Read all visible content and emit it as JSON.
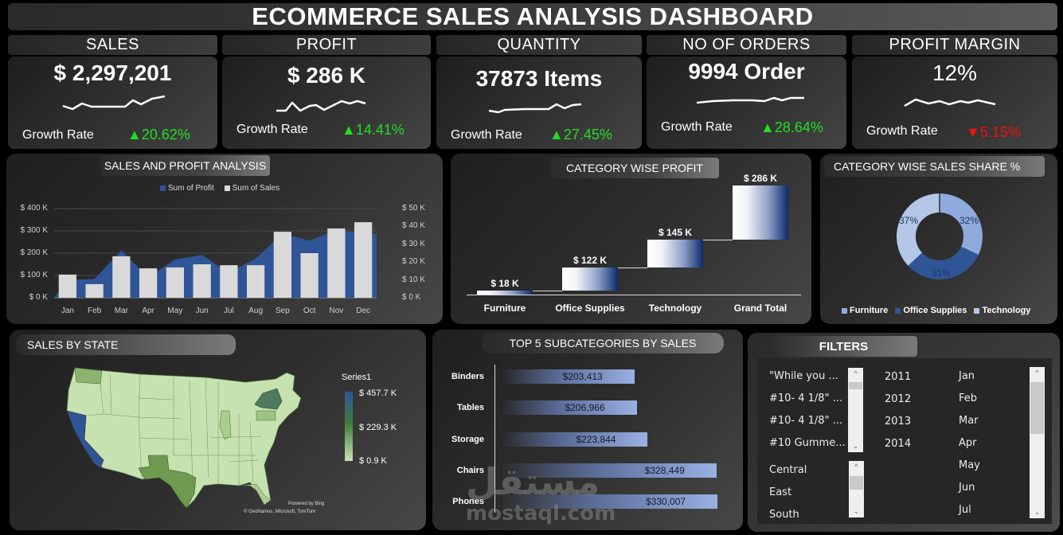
{
  "title": "ECOMMERCE SALES ANALYSIS DASHBOARD",
  "kpis": [
    {
      "header": "SALES",
      "value": "$  2,297,201",
      "growth_label": "Growth Rate",
      "growth_dir": "up",
      "growth_arrow": "▲",
      "growth_value": "20.62%"
    },
    {
      "header": "PROFIT",
      "value": "$ 286 K",
      "growth_label": "Growth Rate",
      "growth_dir": "up",
      "growth_arrow": "▲",
      "growth_value": "14.41%"
    },
    {
      "header": "QUANTITY",
      "value": "37873  Items",
      "growth_label": "Growth Rate",
      "growth_dir": "up",
      "growth_arrow": "▲",
      "growth_value": "27.45%"
    },
    {
      "header": "NO OF ORDERS",
      "value": "9994  Order",
      "growth_label": "Growth Rate",
      "growth_dir": "up",
      "growth_arrow": "▲",
      "growth_value": "28.64%"
    },
    {
      "header": "PROFIT MARGIN",
      "value": "12%",
      "growth_label": "Growth Rate",
      "growth_dir": "down",
      "growth_arrow": "▼",
      "growth_value": "5.15%"
    }
  ],
  "sales_profit": {
    "title": "SALES AND PROFIT ANALYSIS",
    "legend": {
      "profit": "Sum of Profit",
      "sales": "Sum of Sales"
    },
    "left_ticks": [
      "$ 400 K",
      "$ 300 K",
      "$ 200 K",
      "$ 100 K",
      "$ 0 K"
    ],
    "right_ticks": [
      "$ 50 K",
      "$ 40 K",
      "$ 30 K",
      "$ 20 K",
      "$ 10 K",
      "$ 0 K"
    ],
    "months": [
      "Jan",
      "Feb",
      "Mar",
      "Apr",
      "May",
      "Jun",
      "Jul",
      "Aug",
      "Sep",
      "Oct",
      "Nov",
      "Dec"
    ]
  },
  "category_profit": {
    "title": "CATEGORY WISE PROFIT",
    "categories": [
      "Furniture",
      "Office Supplies",
      "Technology",
      "Grand Total"
    ],
    "labels": [
      "$ 18 K",
      "$ 122 K",
      "$ 145 K",
      "$ 286 K"
    ]
  },
  "category_share": {
    "title": "CATEGORY WISE SALES SHARE %",
    "slices": [
      {
        "name": "Furniture",
        "pct": "32%",
        "color": "#8faadc"
      },
      {
        "name": "Office Supplies",
        "pct": "31%",
        "color": "#2f5597"
      },
      {
        "name": "Technology",
        "pct": "37%",
        "color": "#b4c7e7"
      }
    ]
  },
  "map": {
    "title": "SALES BY STATE",
    "legend_title": "Series1",
    "legend_max": "$ 457.7 K",
    "legend_mid": "$ 229.3 K",
    "legend_min": "$ 0.9 K",
    "attribution_1": "Powered by Bing",
    "attribution_2": "© GeoNames, Microsoft, TomTom"
  },
  "top5": {
    "title": "TOP 5 SUBCATEGORIES BY SALES",
    "items": [
      {
        "name": "Binders",
        "value": "$203,413"
      },
      {
        "name": "Tables",
        "value": "$206,966"
      },
      {
        "name": "Storage",
        "value": "$223,844"
      },
      {
        "name": "Chairs",
        "value": "$328,449"
      },
      {
        "name": "Phones",
        "value": "$330,007"
      }
    ]
  },
  "filters": {
    "title": "FILTERS",
    "products": [
      "\"While you ...",
      "#10- 4 1/8\" ...",
      "#10- 4 1/8\" ...",
      "#10 Gumme..."
    ],
    "regions": [
      "Central",
      "East",
      "South"
    ],
    "years": [
      "2011",
      "2012",
      "2013",
      "2014"
    ],
    "months": [
      "Jan",
      "Feb",
      "Mar",
      "Apr",
      "May",
      "Jun",
      "Jul"
    ]
  },
  "watermark": {
    "arabic": "مستقل",
    "latin": "mostaql.com"
  },
  "chart_data": [
    {
      "type": "bar",
      "title": "SALES AND PROFIT ANALYSIS",
      "categories": [
        "Jan",
        "Feb",
        "Mar",
        "Apr",
        "May",
        "Jun",
        "Jul",
        "Aug",
        "Sep",
        "Oct",
        "Nov",
        "Dec"
      ],
      "series": [
        {
          "name": "Sum of Sales",
          "type": "bar",
          "axis": "left",
          "values": [
            104000,
            61000,
            186000,
            132000,
            136000,
            150000,
            146000,
            146000,
            296000,
            200000,
            311000,
            339000
          ]
        },
        {
          "name": "Sum of Profit",
          "type": "area",
          "axis": "right",
          "values": [
            10000,
            10500,
            26500,
            11500,
            21500,
            24000,
            14000,
            22000,
            36000,
            32000,
            38000,
            36000
          ]
        }
      ],
      "ylim_left": [
        0,
        400000
      ],
      "ylim_right": [
        0,
        50000
      ],
      "legend_position": "top",
      "grid": true
    },
    {
      "type": "bar",
      "subtype": "waterfall",
      "title": "CATEGORY WISE PROFIT",
      "categories": [
        "Furniture",
        "Office Supplies",
        "Technology",
        "Grand Total"
      ],
      "values": [
        18000,
        122000,
        145000,
        286000
      ]
    },
    {
      "type": "pie",
      "subtype": "donut",
      "title": "CATEGORY WISE SALES SHARE %",
      "categories": [
        "Furniture",
        "Office Supplies",
        "Technology"
      ],
      "values": [
        32,
        31,
        37
      ],
      "legend_position": "bottom"
    },
    {
      "type": "bar",
      "orientation": "horizontal",
      "title": "TOP 5 SUBCATEGORIES BY SALES",
      "categories": [
        "Binders",
        "Tables",
        "Storage",
        "Chairs",
        "Phones"
      ],
      "values": [
        203413,
        206966,
        223844,
        328449,
        330007
      ]
    },
    {
      "type": "heatmap",
      "subtype": "choropleth",
      "title": "SALES BY STATE",
      "legend": "Series1",
      "range": [
        900,
        457700
      ],
      "highlights": {
        "California": "max (~457.7K)",
        "New York": "high",
        "Texas": "mid-high",
        "Washington": "mid"
      }
    }
  ]
}
